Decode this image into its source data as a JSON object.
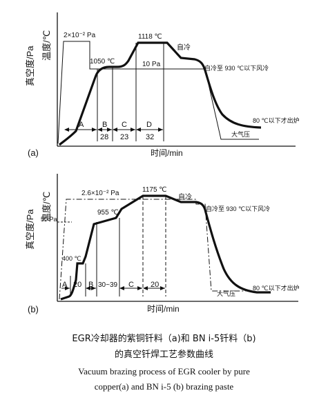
{
  "panel_a": {
    "label": "(a)",
    "y_label_temperature": "温度/℃",
    "y_label_vacuum": "真空度/Pa",
    "x_label": "时间/min",
    "ann_vacuum_high": "2×10⁻² Pa",
    "ann_temp_1050": "1050 ℃",
    "ann_temp_1118": "1118 ℃",
    "ann_vacuum_low": "10 Pa",
    "ann_self_cool": "自冷",
    "ann_fan_cool": "自冷至 930 ℃以下风冷",
    "ann_out": "80 ℃以下才出炉",
    "ann_atm": "大气压",
    "segments": [
      {
        "name": "A",
        "value": ""
      },
      {
        "name": "B",
        "value": "28"
      },
      {
        "name": "C",
        "value": "23"
      },
      {
        "name": "D",
        "value": "32"
      }
    ]
  },
  "panel_b": {
    "label": "(b)",
    "y_label_temperature": "温度/℃",
    "y_label_vacuum": "真空度/Pa",
    "x_label": "时间/min",
    "ann_vacuum_high": "2.6×10⁻² Pa",
    "ann_50pa": "50 Pa",
    "ann_temp_955": "955 ℃",
    "ann_temp_1175": "1175 ℃",
    "ann_temp_400": "400 ℃",
    "ann_self_cool": "自冷",
    "ann_fan_cool": "自冷至 930 ℃以下风冷",
    "ann_out": "80 ℃以下才出炉",
    "ann_atm": "大气压",
    "segments": [
      {
        "name": "A",
        "value": "20"
      },
      {
        "name": "B",
        "value": "30~39"
      },
      {
        "name": "C",
        "value": "20"
      }
    ]
  },
  "caption": {
    "zh_line1": "EGR冷却器的紫铜钎料（a)和 BN i-5钎料（b)",
    "zh_line2": "的真空钎焊工艺参数曲线",
    "en_line1": "Vacuum brazing process of EGR cooler by pure",
    "en_line2": "copper(a) and BN i-5 (b) brazing paste"
  }
}
